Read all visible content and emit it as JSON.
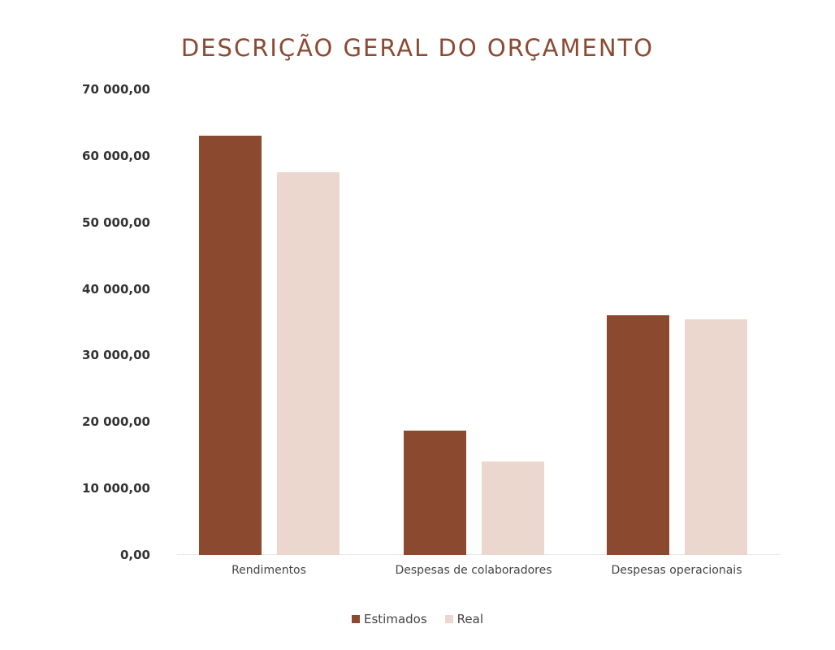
{
  "chart_data": {
    "type": "bar",
    "title": "DESCRIÇÃO GERAL DO ORÇAMENTO",
    "xlabel": "",
    "ylabel": "",
    "ylim": [
      0,
      70000
    ],
    "yticks": [
      0,
      10000,
      20000,
      30000,
      40000,
      50000,
      60000,
      70000
    ],
    "ytick_labels": [
      "0,00",
      "10 000,00",
      "20 000,00",
      "30 000,00",
      "40 000,00",
      "50 000,00",
      "60 000,00",
      "70 000,00"
    ],
    "grid": false,
    "legend_position": "bottom",
    "categories": [
      "Rendimentos",
      "Despesas de colaboradores",
      "Despesas operacionais"
    ],
    "series": [
      {
        "name": "Estimados",
        "color": "#8b4a30",
        "values": [
          63000,
          18700,
          36000
        ]
      },
      {
        "name": "Real",
        "color": "#ecd7cf",
        "values": [
          57500,
          14100,
          35400
        ]
      }
    ]
  }
}
